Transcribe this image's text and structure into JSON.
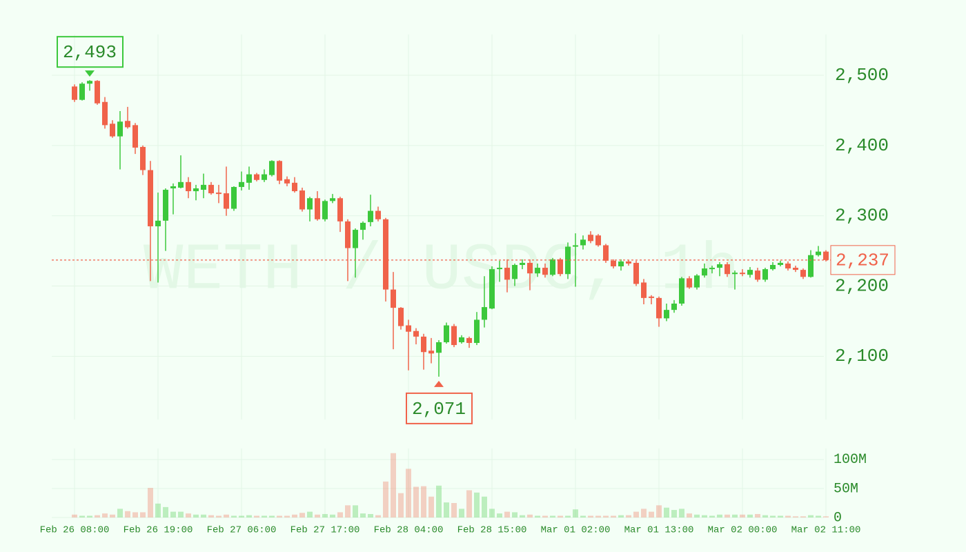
{
  "chart_data": {
    "type": "candlestick",
    "watermark": "WETH / USDC, 1h",
    "categories": [
      "Feb 26 08:00",
      null,
      null,
      null,
      null,
      null,
      null,
      null,
      null,
      null,
      null,
      "Feb 26 19:00",
      null,
      null,
      null,
      null,
      null,
      null,
      null,
      null,
      null,
      null,
      "Feb 27 06:00",
      null,
      null,
      null,
      null,
      null,
      null,
      null,
      null,
      null,
      null,
      "Feb 27 17:00",
      null,
      null,
      null,
      null,
      null,
      null,
      null,
      null,
      null,
      null,
      "Feb 28 04:00",
      null,
      null,
      null,
      null,
      null,
      null,
      null,
      null,
      null,
      null,
      "Feb 28 15:00",
      null,
      null,
      null,
      null,
      null,
      null,
      null,
      null,
      null,
      null,
      "Mar 01 02:00",
      null,
      null,
      null,
      null,
      null,
      null,
      null,
      null,
      null,
      null,
      "Mar 01 13:00",
      null,
      null,
      null,
      null,
      null,
      null,
      null,
      null,
      null,
      null,
      "Mar 02 00:00",
      null,
      null,
      null,
      null,
      null,
      null,
      null,
      null,
      null,
      null,
      "Mar 02 11:00"
    ],
    "open": [
      2484,
      2465,
      2488,
      2492,
      2462,
      2431,
      2413,
      2435,
      2429,
      2398,
      2365,
      2285,
      2293,
      2339,
      2340,
      2348,
      2335,
      2337,
      2344,
      2333,
      2332,
      2310,
      2341,
      2347,
      2359,
      2351,
      2358,
      2378,
      2352,
      2347,
      2336,
      2309,
      2325,
      2295,
      2321,
      2325,
      2292,
      2254,
      2280,
      2291,
      2307,
      2295,
      2195,
      2169,
      2144,
      2136,
      2128,
      2108,
      2105,
      2120,
      2143,
      2120,
      2126,
      2119,
      2152,
      2168,
      2224,
      2226,
      2210,
      2230,
      2233,
      2218,
      2226,
      2216,
      2238,
      2217,
      2256,
      2258,
      2273,
      2272,
      2258,
      2236,
      2228,
      2235,
      2233,
      2205,
      2185,
      2183,
      2154,
      2166,
      2175,
      2211,
      2198,
      2215,
      2224,
      2226,
      2231,
      2217,
      2219,
      2216,
      2222,
      2209,
      2224,
      2230,
      2232,
      2226,
      2223,
      2213,
      2244,
      2249
    ],
    "high": [
      2487,
      2490,
      2493,
      2493,
      2469,
      2436,
      2449,
      2455,
      2432,
      2400,
      2378,
      2333,
      2339,
      2346,
      2386,
      2355,
      2344,
      2360,
      2348,
      2344,
      2370,
      2342,
      2363,
      2370,
      2361,
      2366,
      2379,
      2379,
      2356,
      2355,
      2340,
      2327,
      2335,
      2323,
      2331,
      2327,
      2295,
      2282,
      2292,
      2330,
      2313,
      2297,
      2220,
      2170,
      2152,
      2140,
      2132,
      2126,
      2123,
      2148,
      2146,
      2130,
      2128,
      2163,
      2214,
      2228,
      2236,
      2238,
      2232,
      2238,
      2238,
      2232,
      2232,
      2240,
      2240,
      2262,
      2275,
      2272,
      2278,
      2274,
      2260,
      2238,
      2238,
      2237,
      2236,
      2210,
      2187,
      2185,
      2175,
      2180,
      2213,
      2214,
      2217,
      2232,
      2229,
      2234,
      2234,
      2222,
      2224,
      2227,
      2226,
      2226,
      2234,
      2236,
      2235,
      2229,
      2225,
      2251,
      2257,
      2251
    ],
    "low": [
      2462,
      2464,
      2478,
      2458,
      2424,
      2411,
      2366,
      2424,
      2388,
      2358,
      2207,
      2205,
      2250,
      2302,
      2339,
      2325,
      2322,
      2325,
      2330,
      2318,
      2300,
      2307,
      2336,
      2337,
      2349,
      2348,
      2356,
      2345,
      2342,
      2333,
      2306,
      2292,
      2293,
      2292,
      2318,
      2277,
      2207,
      2212,
      2266,
      2285,
      2292,
      2178,
      2110,
      2138,
      2080,
      2117,
      2081,
      2090,
      2071,
      2118,
      2113,
      2118,
      2112,
      2116,
      2141,
      2167,
      2206,
      2191,
      2200,
      2224,
      2194,
      2213,
      2212,
      2214,
      2214,
      2210,
      2199,
      2252,
      2261,
      2256,
      2233,
      2225,
      2222,
      2229,
      2200,
      2174,
      2174,
      2142,
      2150,
      2162,
      2172,
      2196,
      2195,
      2212,
      2218,
      2214,
      2213,
      2195,
      2214,
      2212,
      2206,
      2206,
      2222,
      2228,
      2222,
      2220,
      2210,
      2212,
      2242,
      2235
    ],
    "close": [
      2465,
      2488,
      2492,
      2460,
      2429,
      2413,
      2434,
      2426,
      2397,
      2365,
      2285,
      2293,
      2337,
      2342,
      2348,
      2335,
      2339,
      2344,
      2332,
      2331,
      2310,
      2341,
      2348,
      2359,
      2351,
      2359,
      2378,
      2350,
      2346,
      2335,
      2309,
      2325,
      2295,
      2321,
      2325,
      2292,
      2254,
      2280,
      2290,
      2307,
      2295,
      2195,
      2169,
      2143,
      2135,
      2128,
      2106,
      2104,
      2120,
      2144,
      2116,
      2127,
      2119,
      2152,
      2170,
      2224,
      2226,
      2209,
      2230,
      2233,
      2218,
      2226,
      2216,
      2238,
      2217,
      2256,
      2258,
      2266,
      2264,
      2258,
      2236,
      2228,
      2235,
      2232,
      2203,
      2183,
      2183,
      2154,
      2166,
      2175,
      2211,
      2198,
      2215,
      2225,
      2226,
      2231,
      2217,
      2219,
      2217,
      2223,
      2209,
      2224,
      2230,
      2233,
      2225,
      2223,
      2213,
      2244,
      2249,
      2237
    ],
    "volume": [
      5000000.0,
      3000000.0,
      3000000.0,
      4000000.0,
      7000000.0,
      5000000.0,
      15000000.0,
      11000000.0,
      9000000.0,
      9000000.0,
      51000000.0,
      24000000.0,
      18000000.0,
      10000000.0,
      10000000.0,
      7000000.0,
      5000000.0,
      5000000.0,
      4000000.0,
      3000000.0,
      5000000.0,
      3000000.0,
      3000000.0,
      4000000.0,
      3000000.0,
      3000000.0,
      3000000.0,
      3000000.0,
      3000000.0,
      5000000.0,
      8000000.0,
      10000000.0,
      5000000.0,
      6000000.0,
      5000000.0,
      9000000.0,
      21000000.0,
      21000000.0,
      7000000.0,
      6000000.0,
      4000000.0,
      62000000.0,
      111000000.0,
      42000000.0,
      84000000.0,
      53000000.0,
      54000000.0,
      36000000.0,
      55000000.0,
      26000000.0,
      25000000.0,
      15000000.0,
      47000000.0,
      43000000.0,
      36000000.0,
      15000000.0,
      7000000.0,
      10000000.0,
      9000000.0,
      4000000.0,
      5000000.0,
      3000000.0,
      3000000.0,
      3000000.0,
      3000000.0,
      3000000.0,
      14000000.0,
      3000000.0,
      3000000.0,
      3000000.0,
      3000000.0,
      3000000.0,
      4000000.0,
      4000000.0,
      10000000.0,
      15000000.0,
      10000000.0,
      21000000.0,
      17000000.0,
      13000000.0,
      15000000.0,
      7000000.0,
      5000000.0,
      4000000.0,
      3000000.0,
      5000000.0,
      5000000.0,
      5000000.0,
      5000000.0,
      5000000.0,
      6000000.0,
      4000000.0,
      3000000.0,
      3000000.0,
      3000000.0,
      2000000.0,
      2000000.0,
      4000000.0,
      3000000.0,
      2000000.0
    ],
    "up_color": "#3cc83c",
    "down_color": "#f0624a",
    "ylim": [
      2010,
      2558
    ],
    "yticks": [
      {
        "value": 2100,
        "label": "2,100"
      },
      {
        "value": 2200,
        "label": "2,200"
      },
      {
        "value": 2300,
        "label": "2,300"
      },
      {
        "value": 2400,
        "label": "2,400"
      },
      {
        "value": 2500,
        "label": "2,500"
      }
    ],
    "volume_ylim": [
      0,
      119000000
    ],
    "volume_yticks": [
      0,
      {
        "value": 50000000,
        "label": "50M"
      },
      {
        "value": 100000000,
        "label": "100M"
      }
    ],
    "high_label": "2,493",
    "low_label": "2,071",
    "last_label": "2,237",
    "grid": true
  }
}
